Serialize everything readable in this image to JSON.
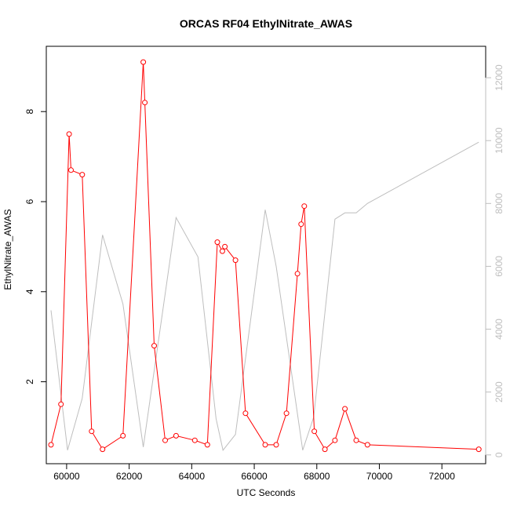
{
  "chart_data": {
    "type": "line",
    "title": "ORCAS RF04 EthylNitrate_AWAS",
    "xlabel": "UTC Seconds",
    "ylabel": "EthylNitrate_AWAS",
    "xlim": [
      59350,
      73400
    ],
    "ylim": [
      0.18,
      9.45
    ],
    "y2lim": [
      -280,
      13000
    ],
    "x_ticks": [
      60000,
      62000,
      64000,
      66000,
      68000,
      70000,
      72000
    ],
    "y_ticks": [
      2,
      4,
      6,
      8
    ],
    "y2_ticks": [
      0,
      2000,
      4000,
      6000,
      8000,
      10000,
      12000
    ],
    "colors": {
      "primary": "#ff0000",
      "secondary": "#bebebe",
      "axis": "#000000"
    },
    "series": [
      {
        "axis": "left",
        "style": "line+points",
        "x": [
          59500,
          59820,
          60080,
          60140,
          60500,
          60800,
          61150,
          61800,
          62450,
          62500,
          62800,
          63150,
          63500,
          64100,
          64500,
          64820,
          64980,
          65060,
          65400,
          65720,
          66350,
          66700,
          67030,
          67380,
          67500,
          67600,
          67920,
          68260,
          68580,
          68900,
          69260,
          69620,
          73180
        ],
        "y": [
          0.6,
          1.5,
          7.5,
          6.7,
          6.6,
          0.9,
          0.5,
          0.8,
          9.1,
          8.2,
          2.8,
          0.7,
          0.8,
          0.7,
          0.6,
          5.1,
          4.9,
          5.0,
          4.7,
          1.3,
          0.6,
          0.6,
          1.3,
          4.4,
          5.5,
          5.9,
          0.9,
          0.5,
          0.7,
          1.4,
          0.7,
          0.6,
          0.5
        ]
      },
      {
        "axis": "right",
        "style": "line",
        "x": [
          59500,
          60030,
          60500,
          61150,
          61800,
          62450,
          63500,
          64200,
          64780,
          65000,
          65400,
          66350,
          66700,
          67550,
          67900,
          68580,
          68900,
          69260,
          69620,
          73180
        ],
        "y": [
          4600,
          150,
          1800,
          7000,
          4800,
          250,
          7550,
          6300,
          1150,
          150,
          650,
          7800,
          6000,
          150,
          1200,
          7500,
          7700,
          7700,
          8000,
          9950
        ]
      }
    ]
  }
}
